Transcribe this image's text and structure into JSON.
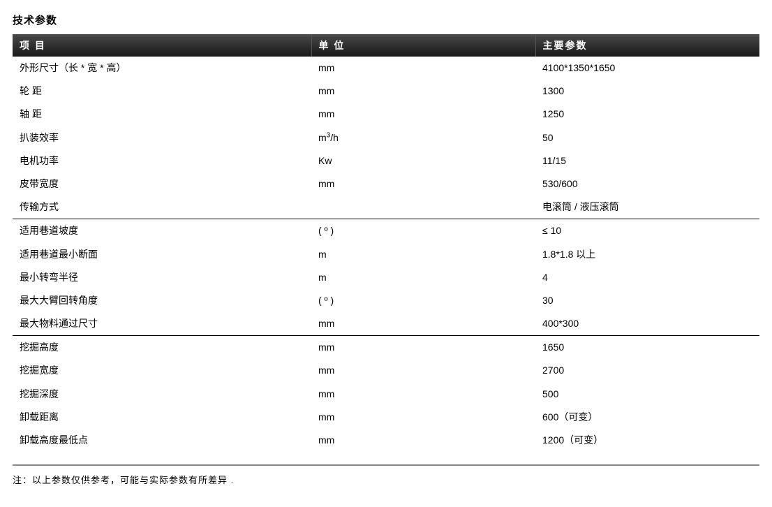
{
  "title": "技术参数",
  "columns": [
    "项 目",
    "单 位",
    "主要参数"
  ],
  "column_widths_pct": [
    40,
    30,
    30
  ],
  "header_bg_gradient": [
    "#4a4a4a",
    "#2b2b2b",
    "#1a1a1a"
  ],
  "header_text_color": "#ffffff",
  "body_text_color": "#000000",
  "background_color": "#ffffff",
  "separator_color": "#000000",
  "footnote_border_color": "#888888",
  "title_fontsize": 15,
  "header_fontsize": 14,
  "body_fontsize": 14,
  "footnote_fontsize": 13,
  "rows": [
    {
      "item": "外形尺寸（长 * 宽 * 高）",
      "unit": "mm",
      "value": "4100*1350*1650",
      "sep": false
    },
    {
      "item": "轮 距",
      "unit": "mm",
      "value": "1300",
      "sep": false
    },
    {
      "item": "轴 距",
      "unit": "mm",
      "value": "1250",
      "sep": false
    },
    {
      "item": "扒装效率",
      "unit_html": "m3h",
      "unit": "m³/h",
      "value": "50",
      "sep": false
    },
    {
      "item": "电机功率",
      "unit": "Kw",
      "value": "11/15",
      "sep": false
    },
    {
      "item": "皮带宽度",
      "unit": "mm",
      "value": "530/600",
      "sep": false
    },
    {
      "item": "传输方式",
      "unit": "",
      "value": "电滚筒 / 液压滚筒",
      "sep": true
    },
    {
      "item": "适用巷道坡度",
      "unit": "( º )",
      "value": "≤ 10",
      "sep": false
    },
    {
      "item": "适用巷道最小断面",
      "unit": "m",
      "value": "1.8*1.8 以上",
      "sep": false
    },
    {
      "item": "最小转弯半径",
      "unit": "m",
      "value": "4",
      "sep": false
    },
    {
      "item": "最大大臂回转角度",
      "unit": "( º )",
      "value": "30",
      "sep": false
    },
    {
      "item": "最大物料通过尺寸",
      "unit": "mm",
      "value": "400*300",
      "sep": true
    },
    {
      "item": "挖掘高度",
      "unit": "mm",
      "value": "1650",
      "sep": false
    },
    {
      "item": "挖掘宽度",
      "unit": "mm",
      "value": "2700",
      "sep": false
    },
    {
      "item": "挖掘深度",
      "unit": "mm",
      "value": "500",
      "sep": false
    },
    {
      "item": "卸载距离",
      "unit": "mm",
      "value": "600（可变）",
      "sep": false
    },
    {
      "item": "卸载高度最低点",
      "unit": "mm",
      "value": "1200（可变）",
      "sep": false
    }
  ],
  "footnote": "注：以上参数仅供参考，可能与实际参数有所差异 ."
}
